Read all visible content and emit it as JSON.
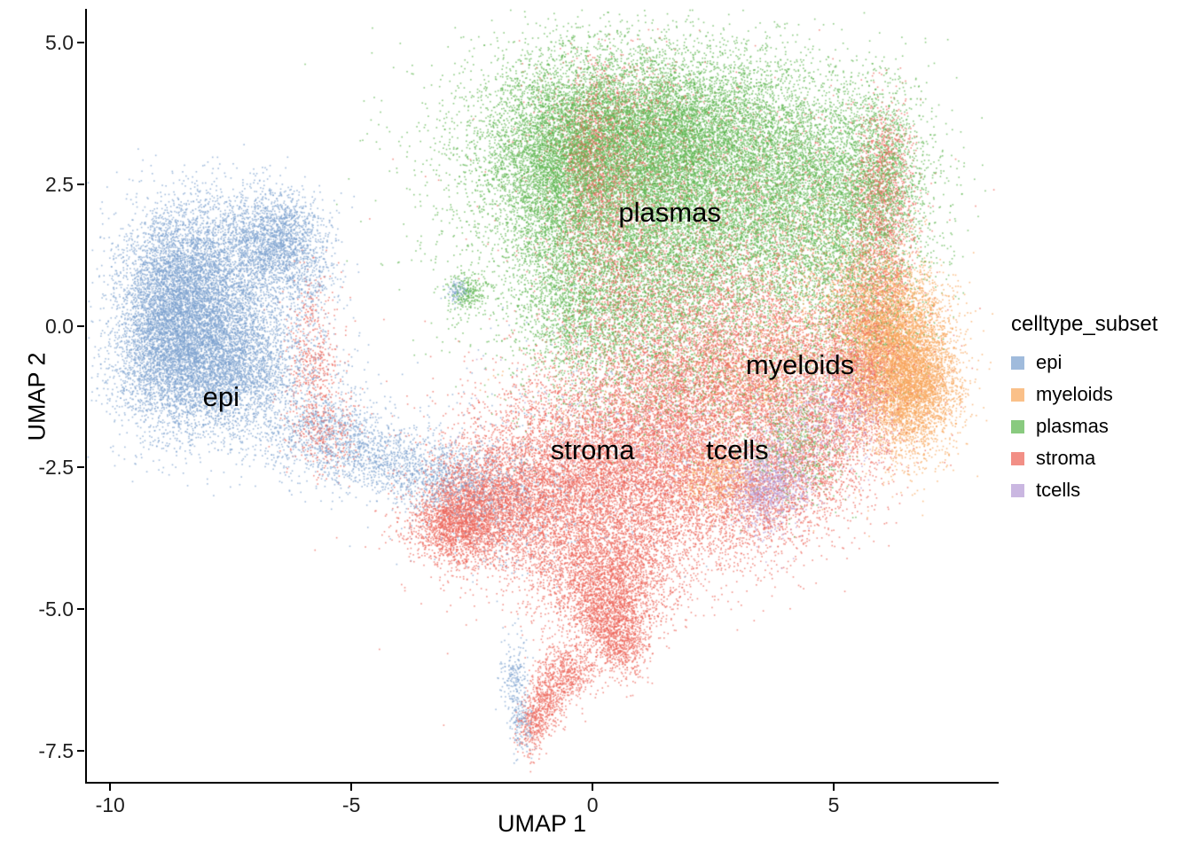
{
  "chart_data": {
    "type": "scatter",
    "title": "",
    "xlabel": "UMAP 1",
    "ylabel": "UMAP 2",
    "grid": false,
    "x_domain": [
      -10.5,
      8.4
    ],
    "y_domain": [
      -8.05,
      5.6
    ],
    "x_ticks": {
      "values": [
        -10,
        -5,
        0,
        5
      ],
      "labels": [
        "-10",
        "-5",
        "0",
        "5"
      ]
    },
    "y_ticks": {
      "values": [
        5,
        2.5,
        0,
        -2.5,
        -5,
        -7.5
      ],
      "labels": [
        "5.0",
        "2.5",
        "0.0",
        "-2.5",
        "-5.0",
        "-7.5"
      ]
    },
    "legend": {
      "title": "celltype_subset",
      "position": "right",
      "entries": [
        {
          "label": "epi",
          "color": "#7CA1CE"
        },
        {
          "label": "myeloids",
          "color": "#F8A75C"
        },
        {
          "label": "plasmas",
          "color": "#5CB54E"
        },
        {
          "label": "stroma",
          "color": "#ED6458"
        },
        {
          "label": "tcells",
          "color": "#B59BD6"
        }
      ]
    },
    "annotations": [
      {
        "text": "epi",
        "x": -7.7,
        "y": -1.25
      },
      {
        "text": "plasmas",
        "x": 1.6,
        "y": 2.0
      },
      {
        "text": "myeloids",
        "x": 4.3,
        "y": -0.7
      },
      {
        "text": "stroma",
        "x": 0.0,
        "y": -2.2
      },
      {
        "text": "tcells",
        "x": 3.0,
        "y": -2.2
      }
    ],
    "point": {
      "size": 1.6,
      "alpha": 0.7
    },
    "seed": 42,
    "components_format": "[x_center, y_center, x_sd, y_sd, n_points] gaussian blobs approximating each cluster point cloud",
    "series": [
      {
        "name": "epi",
        "color": "#7CA1CE",
        "components": [
          [
            -8.3,
            0.7,
            0.75,
            0.75,
            5200
          ],
          [
            -7.9,
            -0.7,
            0.95,
            0.62,
            5200
          ],
          [
            -6.7,
            1.55,
            0.5,
            0.45,
            1600
          ],
          [
            -6.1,
            1.1,
            0.45,
            0.55,
            700
          ],
          [
            -8.9,
            -0.1,
            0.45,
            0.8,
            1500
          ],
          [
            -5.6,
            -1.9,
            0.7,
            0.4,
            900
          ],
          [
            -4.4,
            -2.35,
            0.6,
            0.32,
            650
          ],
          [
            -3.3,
            -2.65,
            0.5,
            0.3,
            520
          ],
          [
            -2.3,
            -2.9,
            0.6,
            0.4,
            420
          ],
          [
            -1.5,
            -3.0,
            1.1,
            0.7,
            420
          ],
          [
            0.0,
            -1.9,
            1.6,
            1.0,
            320
          ],
          [
            -1.6,
            -6.25,
            0.16,
            0.38,
            220
          ],
          [
            -1.45,
            -7.05,
            0.13,
            0.27,
            130
          ],
          [
            -2.8,
            0.6,
            0.12,
            0.12,
            90
          ]
        ]
      },
      {
        "name": "plasmas",
        "color": "#5CB54E",
        "components": [
          [
            1.2,
            3.35,
            1.75,
            0.78,
            12000
          ],
          [
            1.9,
            1.9,
            2.0,
            0.9,
            7500
          ],
          [
            4.7,
            2.3,
            0.95,
            1.0,
            3000
          ],
          [
            5.9,
            2.6,
            0.55,
            0.85,
            1500
          ],
          [
            -0.8,
            2.7,
            0.6,
            0.95,
            2600
          ],
          [
            0.9,
            0.4,
            1.4,
            0.75,
            2400
          ],
          [
            -0.5,
            0.3,
            0.5,
            0.6,
            700
          ],
          [
            1.5,
            -0.8,
            1.5,
            0.7,
            1100
          ],
          [
            4.2,
            -2.0,
            0.55,
            0.6,
            650
          ],
          [
            -2.6,
            0.6,
            0.22,
            0.18,
            260
          ],
          [
            5.3,
            0.3,
            0.8,
            0.7,
            900
          ]
        ]
      },
      {
        "name": "myeloids",
        "color": "#F8A75C",
        "components": [
          [
            6.35,
            -0.55,
            0.55,
            0.75,
            5200
          ],
          [
            6.8,
            -1.15,
            0.42,
            0.5,
            1600
          ],
          [
            5.8,
            0.2,
            0.5,
            0.5,
            900
          ],
          [
            2.6,
            -2.65,
            0.42,
            0.3,
            550
          ],
          [
            4.9,
            0.9,
            0.8,
            0.8,
            420
          ],
          [
            1.8,
            -1.6,
            1.6,
            0.8,
            380
          ],
          [
            3.6,
            -0.9,
            1.0,
            0.6,
            700
          ]
        ]
      },
      {
        "name": "stroma",
        "color": "#ED6458",
        "components": [
          [
            0.5,
            -2.6,
            1.6,
            0.9,
            9000
          ],
          [
            -1.8,
            -3.2,
            0.8,
            0.55,
            2400
          ],
          [
            -2.7,
            -3.35,
            0.38,
            0.45,
            1300
          ],
          [
            -3.1,
            -3.6,
            0.45,
            0.25,
            500
          ],
          [
            0.2,
            -4.3,
            0.85,
            0.5,
            2000
          ],
          [
            0.35,
            -5.0,
            0.5,
            0.4,
            1200
          ],
          [
            0.55,
            -5.6,
            0.28,
            0.3,
            650
          ],
          [
            -0.5,
            -6.1,
            0.28,
            0.26,
            500
          ],
          [
            -0.95,
            -6.6,
            0.2,
            0.3,
            400
          ],
          [
            -1.25,
            -7.05,
            0.16,
            0.26,
            300
          ],
          [
            0.3,
            1.9,
            0.5,
            1.2,
            1500
          ],
          [
            -0.05,
            3.0,
            0.3,
            0.6,
            550
          ],
          [
            0.6,
            3.6,
            0.8,
            0.6,
            600
          ],
          [
            3.8,
            -0.9,
            1.25,
            0.75,
            3200
          ],
          [
            5.5,
            -0.9,
            0.5,
            0.9,
            1500
          ],
          [
            5.95,
            1.5,
            0.38,
            1.0,
            1200
          ],
          [
            6.05,
            2.8,
            0.3,
            0.55,
            500
          ],
          [
            2.5,
            1.6,
            1.8,
            1.2,
            2000
          ],
          [
            2.2,
            0.3,
            1.2,
            0.6,
            1000
          ],
          [
            1.8,
            -1.2,
            1.2,
            0.8,
            2400
          ],
          [
            -5.8,
            -0.6,
            0.3,
            0.8,
            500
          ],
          [
            -5.5,
            -1.9,
            0.35,
            0.4,
            300
          ],
          [
            3.2,
            -3.2,
            0.8,
            0.5,
            1000
          ],
          [
            4.6,
            -2.4,
            0.55,
            0.5,
            800
          ]
        ]
      },
      {
        "name": "tcells",
        "color": "#B59BD6",
        "components": [
          [
            3.6,
            -2.9,
            0.38,
            0.35,
            900
          ],
          [
            3.9,
            -2.4,
            0.5,
            0.4,
            350
          ],
          [
            4.6,
            -1.6,
            0.6,
            0.5,
            300
          ],
          [
            5.3,
            -1.35,
            0.45,
            0.4,
            250
          ],
          [
            2.2,
            -2.2,
            0.9,
            0.5,
            180
          ],
          [
            1.0,
            -1.5,
            1.5,
            0.8,
            150
          ]
        ]
      }
    ]
  }
}
